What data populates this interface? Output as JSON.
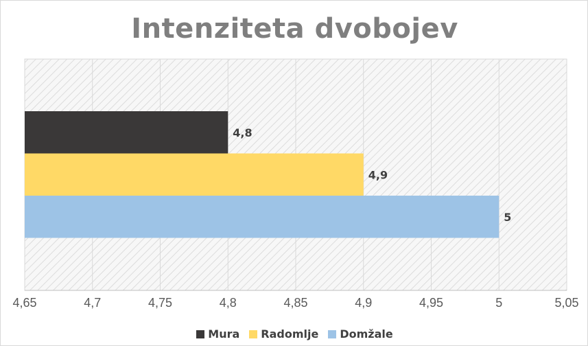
{
  "chart_data": {
    "type": "bar",
    "orientation": "horizontal",
    "title": "Intenziteta dvobojev",
    "xlabel": "",
    "ylabel": "",
    "xlim": [
      4.65,
      5.05
    ],
    "x_ticks": [
      "4,65",
      "4,7",
      "4,75",
      "4,8",
      "4,85",
      "4,9",
      "4,95",
      "5",
      "5,05"
    ],
    "x_tick_values": [
      4.65,
      4.7,
      4.75,
      4.8,
      4.85,
      4.9,
      4.95,
      5.0,
      5.05
    ],
    "grid": true,
    "legend_position": "bottom",
    "series": [
      {
        "name": "Mura",
        "value": 4.8,
        "label": "4,8",
        "color": "#3a3838"
      },
      {
        "name": "Radomlje",
        "value": 4.9,
        "label": "4,9",
        "color": "#ffd966"
      },
      {
        "name": "Domžale",
        "value": 5.0,
        "label": "5",
        "color": "#9dc3e6"
      }
    ]
  }
}
